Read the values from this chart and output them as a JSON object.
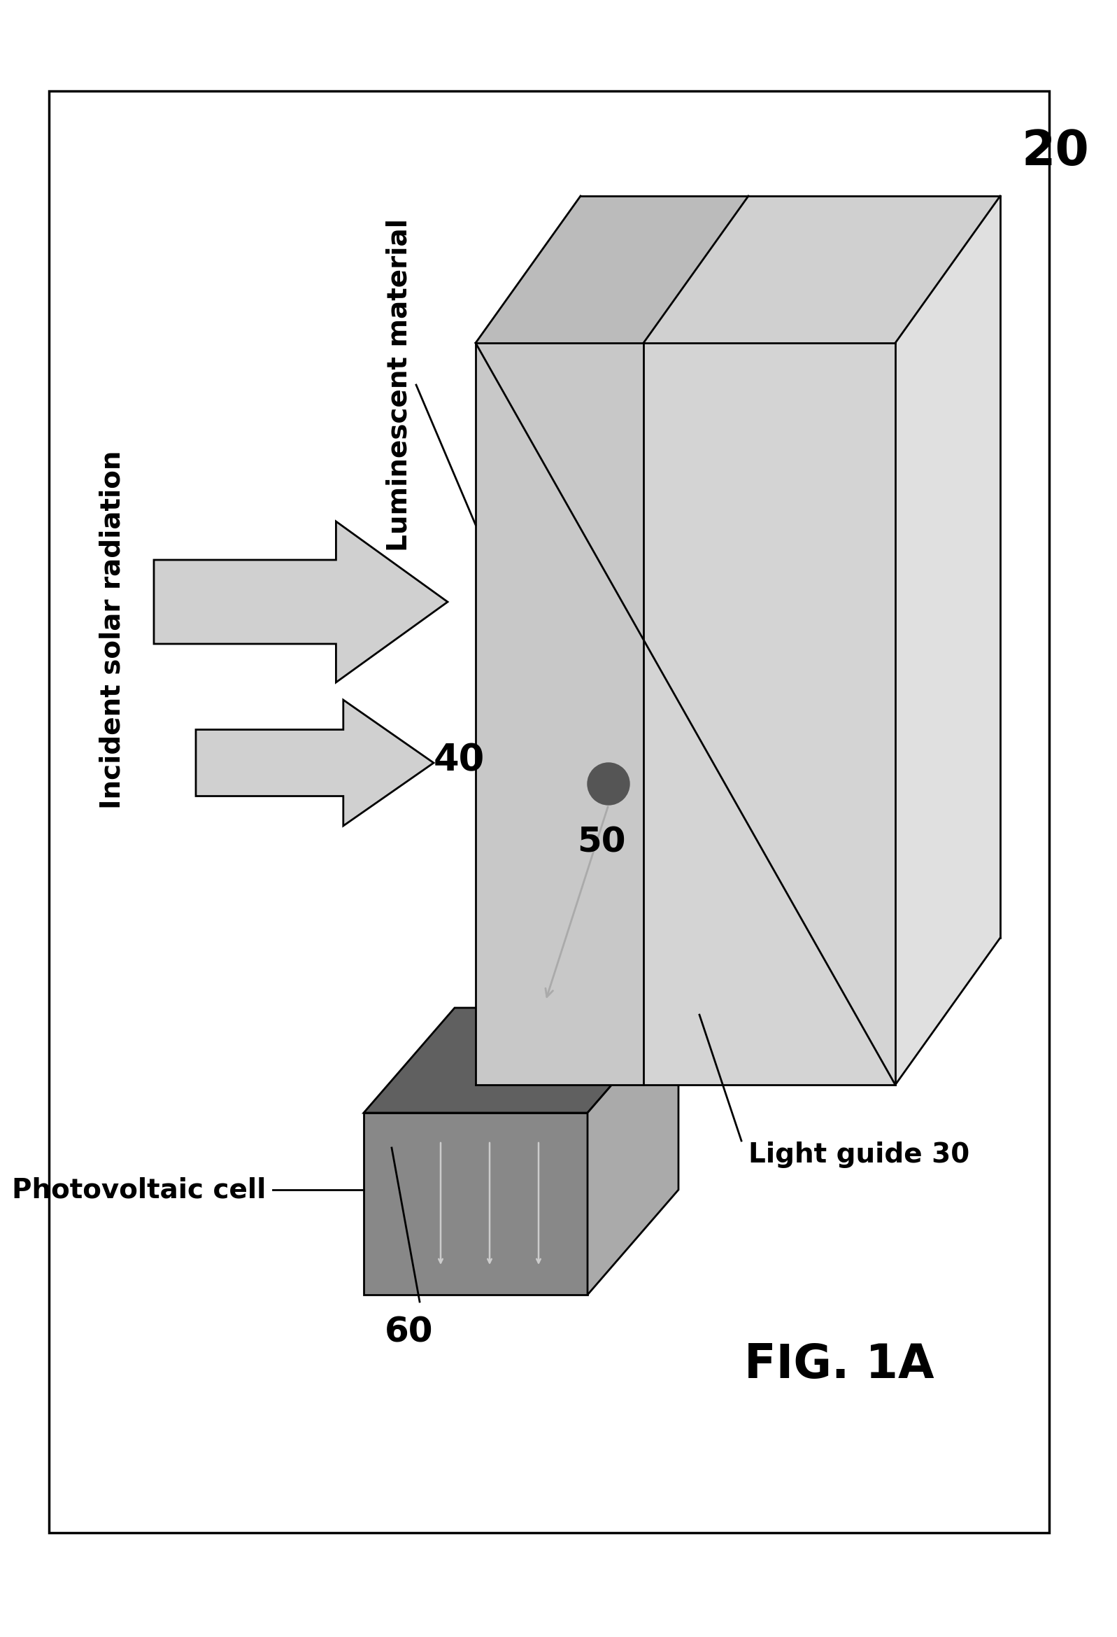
{
  "fig_label": "FIG. 1A",
  "label_20": "20",
  "label_30": "Light guide 30",
  "label_40": "40",
  "label_50": "50",
  "label_60": "60",
  "text_incident": "Incident solar radiation",
  "text_luminescent": "Luminescent material",
  "text_photovoltaic": "Photovoltaic cell",
  "bg_color": "#ffffff",
  "lsc_left_color": "#c8c8c8",
  "lsc_right_color": "#d4d4d4",
  "lsc_top_color": "#bbbbbb",
  "lsc_top_right_color": "#d0d0d0",
  "lsc_right_face_color": "#e0e0e0",
  "pv_front_color": "#888888",
  "pv_top_color": "#606060",
  "pv_side_color": "#aaaaaa",
  "arrow_fill": "#d0d0d0",
  "arrow_edge": "#000000",
  "dot_color": "#555555",
  "guide_arrow_color": "#aaaaaa",
  "text_color": "#000000",
  "lw_main": 2.0
}
